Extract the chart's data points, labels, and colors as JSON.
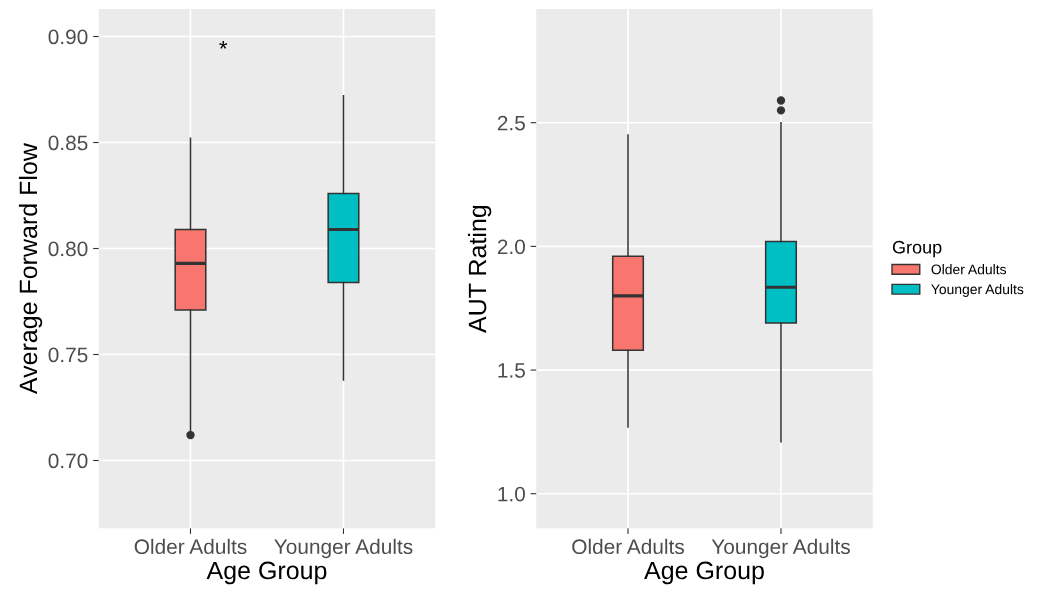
{
  "chart_data": [
    {
      "type": "box",
      "categories": [
        "Older Adults",
        "Younger Adults"
      ],
      "xlabel": "Age Group",
      "ylabel": "Average Forward Flow",
      "ylim": [
        0.668,
        0.913
      ],
      "yticks": [
        {
          "value": 0.7,
          "label": "0.70"
        },
        {
          "value": 0.75,
          "label": "0.75"
        },
        {
          "value": 0.8,
          "label": "0.80"
        },
        {
          "value": 0.85,
          "label": "0.85"
        },
        {
          "value": 0.9,
          "label": "0.90"
        }
      ],
      "grid": true,
      "annotations": [
        "*"
      ],
      "series": [
        {
          "color": "#f8766d",
          "boxes": [
            {
              "low": 0.714,
              "q1": 0.771,
              "median": 0.793,
              "q3": 0.809,
              "high": 0.852,
              "outliers": [
                0.712
              ]
            },
            null
          ]
        },
        {
          "color": "#00bfc4",
          "boxes": [
            null,
            {
              "low": 0.738,
              "q1": 0.784,
              "median": 0.809,
              "q3": 0.826,
              "high": 0.872
            }
          ]
        }
      ]
    },
    {
      "type": "box",
      "categories": [
        "Older Adults",
        "Younger Adults"
      ],
      "xlabel": "Age Group",
      "ylabel": "AUT Rating",
      "ylim": [
        0.86,
        2.96
      ],
      "yticks": [
        {
          "value": 1.0,
          "label": "1.0"
        },
        {
          "value": 1.5,
          "label": "1.5"
        },
        {
          "value": 2.0,
          "label": "2.0"
        },
        {
          "value": 2.5,
          "label": "2.5"
        }
      ],
      "grid": true,
      "legend": "right",
      "legend_title": "Group",
      "series": [
        {
          "name": "Older Adults",
          "color": "#f8766d",
          "boxes": [
            {
              "low": 1.27,
              "q1": 1.58,
              "median": 1.8,
              "q3": 1.96,
              "high": 2.45
            },
            null
          ]
        },
        {
          "name": "Younger Adults",
          "color": "#00bfc4",
          "boxes": [
            null,
            {
              "low": 1.21,
              "q1": 1.69,
              "median": 1.835,
              "q3": 2.02,
              "high": 2.5,
              "outliers": [
                2.55,
                2.59
              ]
            }
          ]
        }
      ]
    }
  ]
}
